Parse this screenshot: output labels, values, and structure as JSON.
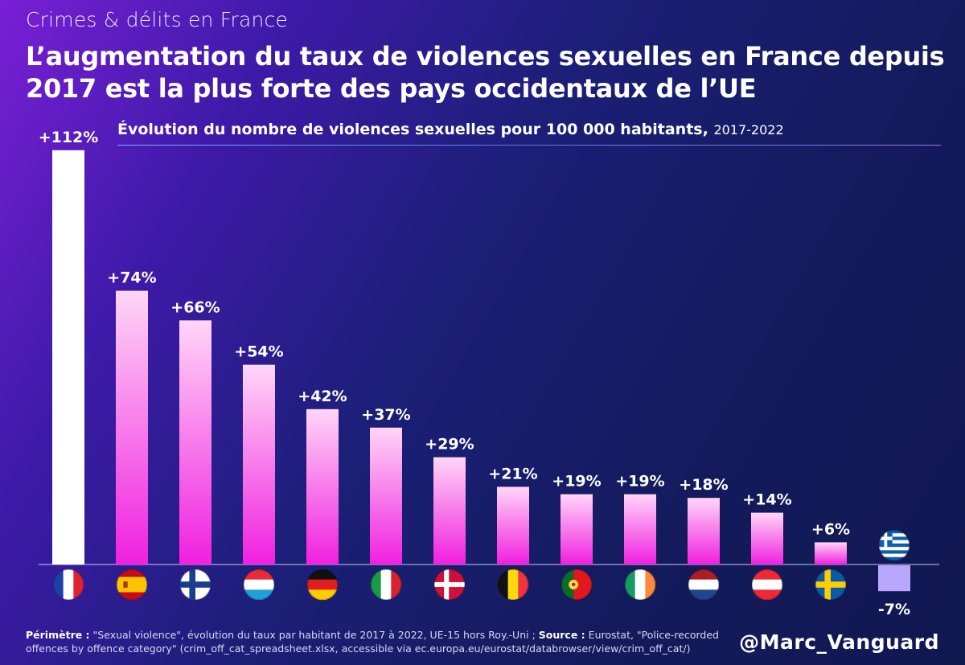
{
  "kicker": "Crimes & délits en France",
  "headline": "L’augmentation du taux de violences sexuelles en France depuis 2017 est la plus forte des pays occidentaux de l’UE",
  "chart_data": {
    "type": "bar",
    "title": "Évolution du nombre de violences sexuelles pour 100 000 habitants,",
    "period": "2017-2022",
    "unit": "%",
    "categories": [
      "France",
      "Espagne",
      "Finlande",
      "Luxembourg",
      "Allemagne",
      "Italie",
      "Danemark",
      "Belgique",
      "Portugal",
      "Irlande",
      "Pays-Bas",
      "Autriche",
      "Suède",
      "Grèce"
    ],
    "flag_icons": [
      "france-flag-icon",
      "spain-flag-icon",
      "finland-flag-icon",
      "luxembourg-flag-icon",
      "germany-flag-icon",
      "italy-flag-icon",
      "denmark-flag-icon",
      "belgium-flag-icon",
      "portugal-flag-icon",
      "ireland-flag-icon",
      "netherlands-flag-icon",
      "austria-flag-icon",
      "sweden-flag-icon",
      "greece-flag-icon"
    ],
    "values": [
      112,
      74,
      66,
      54,
      42,
      37,
      29,
      21,
      19,
      19,
      18,
      14,
      6,
      -7
    ],
    "labels": [
      "+112%",
      "+74%",
      "+66%",
      "+54%",
      "+42%",
      "+37%",
      "+29%",
      "+21%",
      "+19%",
      "+19%",
      "+18%",
      "+14%",
      "+6%",
      "-7%"
    ],
    "colors": {
      "highlight": "#ffffff",
      "positive_top": "#ffd6f7",
      "positive_bottom": "#f020e0",
      "negative": "#b9a6ff",
      "baseline": "#c8c8e8"
    },
    "ylim": [
      -10,
      115
    ],
    "grid": false,
    "legend": "none"
  },
  "footnote": {
    "perimeter_label": "Périmètre :",
    "perimeter_text": "\"Sexual violence\", évolution du taux par habitant de 2017 à 2022, UE-15 hors Roy.-Uni ;",
    "source_label": "Source :",
    "source_text": "Eurostat, \"Police-recorded offences by offence category\" (crim_off_cat_spreadsheet.xlsx, accessible via ec.europa.eu/eurostat/databrowser/view/crim_off_cat/)"
  },
  "handle": "@Marc_Vanguard"
}
